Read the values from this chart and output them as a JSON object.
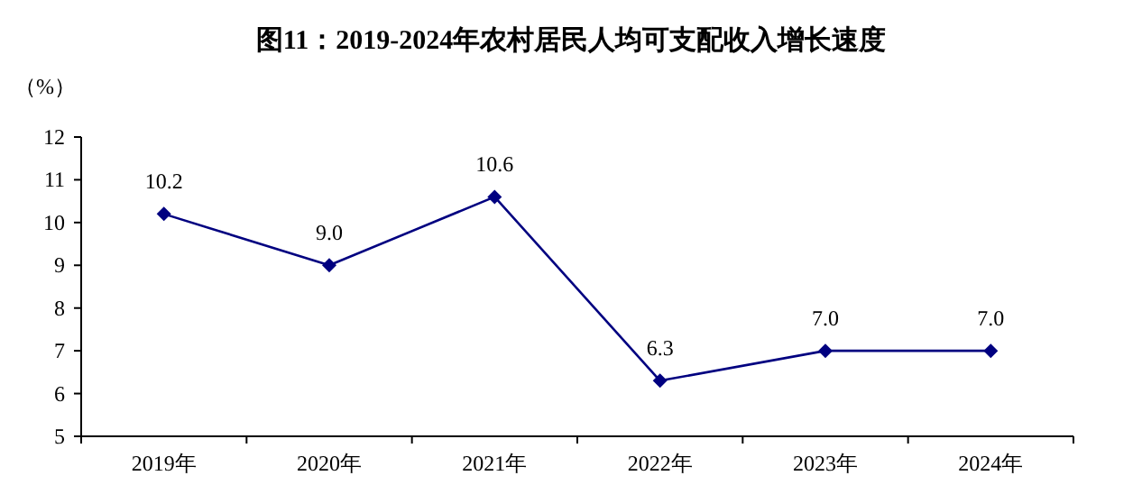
{
  "chart_data": {
    "type": "line",
    "title": "图11：2019-2024年农村居民人均可支配收入增长速度",
    "ylabel": "（%）",
    "categories": [
      "2019年",
      "2020年",
      "2021年",
      "2022年",
      "2023年",
      "2024年"
    ],
    "series": [
      {
        "color": "#000080",
        "values": [
          10.2,
          9.0,
          10.6,
          6.3,
          7.0,
          7.0
        ],
        "value_labels": [
          "10.2",
          "9.0",
          "10.6",
          "6.3",
          "7.0",
          "7.0"
        ]
      }
    ],
    "ylim": [
      5,
      12
    ],
    "yticks": [
      5,
      6,
      7,
      8,
      9,
      10,
      11,
      12
    ],
    "marker": "diamond",
    "grid": false
  }
}
